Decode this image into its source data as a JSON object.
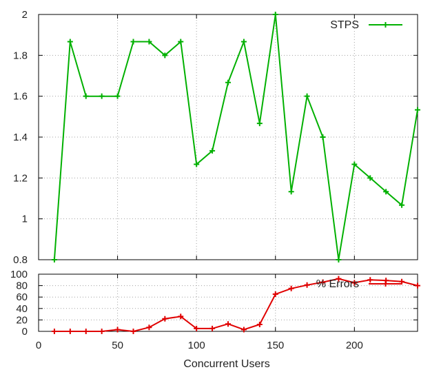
{
  "chart_data": [
    {
      "type": "line",
      "title": "",
      "xlabel": "",
      "ylabel": "",
      "xlim": [
        0,
        240
      ],
      "ylim": [
        0.8,
        2.0
      ],
      "x_ticks": [
        0,
        50,
        100,
        150,
        200
      ],
      "y_ticks": [
        "0.8",
        "1",
        "1.2",
        "1.4",
        "1.6",
        "1.8",
        "2"
      ],
      "grid": true,
      "legend_position": "top-right",
      "series": [
        {
          "name": "STPS",
          "color": "#00b000",
          "x": [
            10,
            20,
            30,
            40,
            50,
            60,
            70,
            80,
            90,
            100,
            110,
            120,
            130,
            140,
            150,
            160,
            170,
            180,
            190,
            200,
            210,
            220,
            230,
            240
          ],
          "values": [
            0.8,
            1.867,
            1.6,
            1.6,
            1.6,
            1.867,
            1.867,
            1.8,
            1.867,
            1.267,
            1.333,
            1.667,
            1.867,
            1.467,
            2.0,
            1.133,
            1.6,
            1.4,
            0.8,
            1.267,
            1.2,
            1.133,
            1.067,
            1.533
          ]
        }
      ]
    },
    {
      "type": "line",
      "title": "",
      "xlabel": "Concurrent Users",
      "ylabel": "",
      "xlim": [
        0,
        240
      ],
      "ylim": [
        0,
        100
      ],
      "x_ticks": [
        "0",
        "50",
        "100",
        "150",
        "200"
      ],
      "y_ticks": [
        "0",
        "20",
        "40",
        "60",
        "80",
        "100"
      ],
      "grid": true,
      "legend_position": "top-right",
      "series": [
        {
          "name": "% Errors",
          "color": "#e00000",
          "x": [
            10,
            20,
            30,
            40,
            50,
            60,
            70,
            80,
            90,
            100,
            110,
            120,
            130,
            140,
            150,
            160,
            170,
            180,
            190,
            200,
            210,
            220,
            230,
            240
          ],
          "values": [
            0,
            0,
            0,
            0,
            3,
            0,
            7,
            22,
            26,
            5,
            5,
            13,
            3,
            12,
            65,
            75,
            81,
            86,
            92,
            85,
            90,
            89,
            87,
            80
          ]
        }
      ]
    }
  ]
}
